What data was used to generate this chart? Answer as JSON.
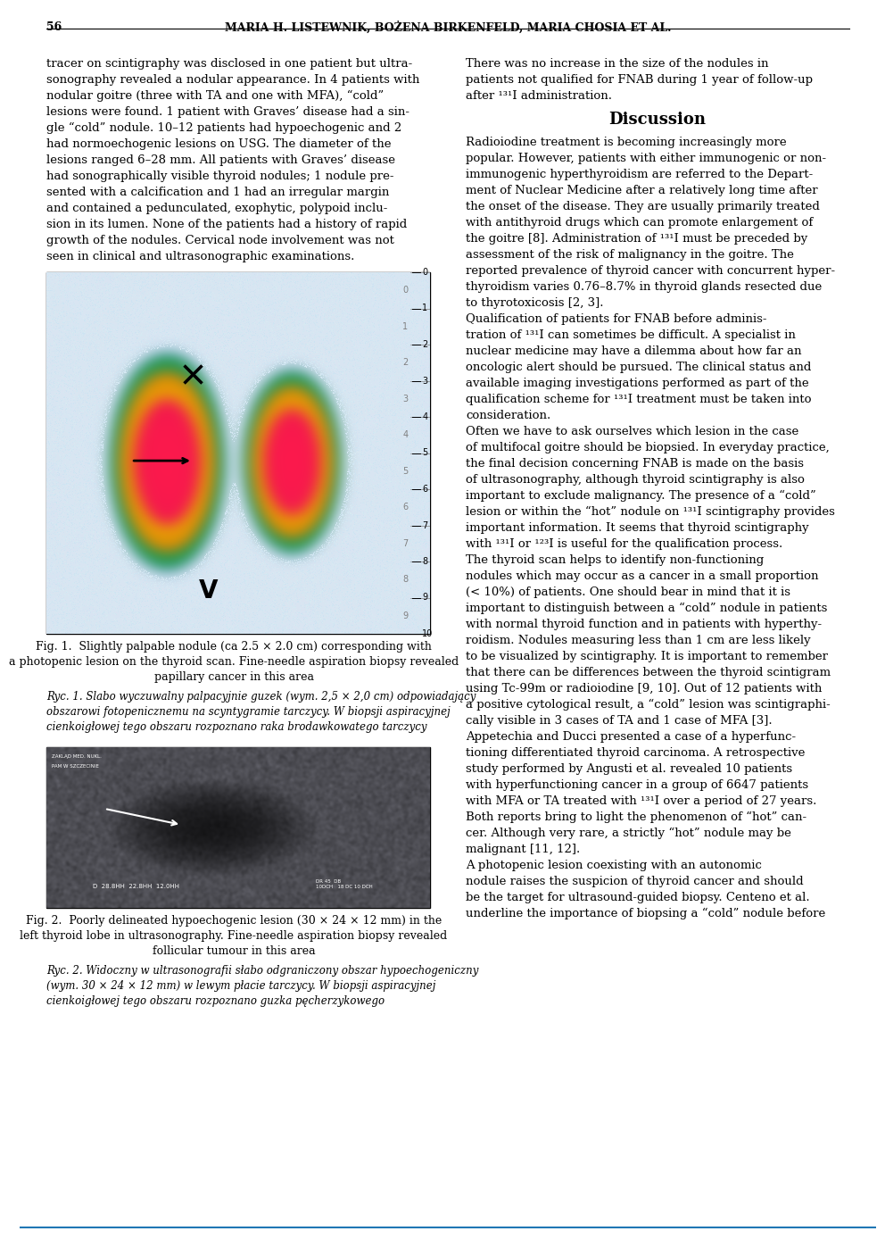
{
  "page_number": "56",
  "header_authors": "MARIA H. LISTEWNIK, BOŻENA BIRKENFELD, MARIA CHOSIA ET AL.",
  "background_color": "#ffffff",
  "left_col_text": [
    "tracer on scintigraphy was disclosed in one patient but ultra-",
    "sonography revealed a nodular appearance. In 4 patients with",
    "nodular goitre (three with TA and one with MFA), “cold”",
    "lesions were found. 1 patient with Graves’ disease had a sin-",
    "gle “cold” nodule. 10–12 patients had hypoechogenic and 2",
    "had normoechogenic lesions on USG. The diameter of the",
    "lesions ranged 6–28 mm. All patients with Graves’ disease",
    "had sonographically visible thyroid nodules; 1 nodule pre-",
    "sented with a calcification and 1 had an irregular margin",
    "and contained a pedunculated, exophytic, polypoid inclu-",
    "sion in its lumen. None of the patients had a history of rapid",
    "growth of the nodules. Cervical node involvement was not",
    "seen in clinical and ultrasonographic examinations."
  ],
  "right_col_text_top": [
    "There was no increase in the size of the nodules in",
    "patients not qualified for FNAB during 1 year of follow-up",
    "after ¹³¹I administration."
  ],
  "discussion_title": "Discussion",
  "right_col_discussion": [
    "Radioiodine treatment is becoming increasingly more",
    "popular. However, patients with either immunogenic or non-",
    "immunogenic hyperthyroidism are referred to the Depart-",
    "ment of Nuclear Medicine after a relatively long time after",
    "the onset of the disease. They are usually primarily treated",
    "with antithyroid drugs which can promote enlargement of",
    "the goitre [8]. Administration of ¹³¹I must be preceded by",
    "assessment of the risk of malignancy in the goitre. The",
    "reported prevalence of thyroid cancer with concurrent hyper-",
    "thyroidism varies 0.76–8.7% in thyroid glands resected due",
    "to thyrotoxicosis [2, 3].",
    "Qualification of patients for FNAB before adminis-",
    "tration of ¹³¹I can sometimes be difficult. A specialist in",
    "nuclear medicine may have a dilemma about how far an",
    "oncologic alert should be pursued. The clinical status and",
    "available imaging investigations performed as part of the",
    "qualification scheme for ¹³¹I treatment must be taken into",
    "consideration.",
    "Often we have to ask ourselves which lesion in the case",
    "of multifocal goitre should be biopsied. In everyday practice,",
    "the final decision concerning FNAB is made on the basis",
    "of ultrasonography, although thyroid scintigraphy is also",
    "important to exclude malignancy. The presence of a “cold”",
    "lesion or within the “hot” nodule on ¹³¹I scintigraphy provides",
    "important information. It seems that thyroid scintigraphy",
    "with ¹³¹I or ¹²³I is useful for the qualification process.",
    "The thyroid scan helps to identify non-functioning",
    "nodules which may occur as a cancer in a small proportion",
    "(< 10%) of patients. One should bear in mind that it is",
    "important to distinguish between a “cold” nodule in patients",
    "with normal thyroid function and in patients with hyperthy-",
    "roidism. Nodules measuring less than 1 cm are less likely",
    "to be visualized by scintigraphy. It is important to remember",
    "that there can be differences between the thyroid scintigram",
    "using Tc-99m or radioiodine [9, 10]. Out of 12 patients with",
    "a positive cytological result, a “cold” lesion was scintigraphi-",
    "cally visible in 3 cases of TA and 1 case of MFA [3].",
    "Appetechia and Ducci presented a case of a hyperfunc-",
    "tioning differentiated thyroid carcinoma. A retrospective",
    "study performed by Angusti et al. revealed 10 patients",
    "with hyperfunctioning cancer in a group of 6647 patients",
    "with MFA or TA treated with ¹³¹I over a period of 27 years.",
    "Both reports bring to light the phenomenon of “hot” can-",
    "cer. Although very rare, a strictly “hot” nodule may be",
    "malignant [11, 12].",
    "A photopenic lesion coexisting with an autonomic",
    "nodule raises the suspicion of thyroid cancer and should",
    "be the target for ultrasound-guided biopsy. Centeno et al.",
    "underline the importance of biopsing a “cold” nodule before"
  ],
  "fig1_caption_en": "Fig. 1.  Slightly palpable nodule (ca 2.5 × 2.0 cm) corresponding with\na photopenic lesion on the thyroid scan. Fine-needle aspiration biopsy revealed\npapillary cancer in this area",
  "fig1_caption_pl": "Ryc. 1. Slabo wyczuwalny palpacyjnie guzek (wym. 2,5 × 2,0 cm) odpowiadający\nobszarowi fotopenicznemu na scyntygramie tarczycy. W biopsji aspiracyjnej\ncienkoigłowej tego obszaru rozpoznano raka brodawkowatego tarczycy",
  "fig2_caption_en": "Fig. 2.  Poorly delineated hypoechogenic lesion (30 × 24 × 12 mm) in the\nleft thyroid lobe in ultrasonography. Fine-needle aspiration biopsy revealed\nfollicular tumour in this area",
  "fig2_caption_pl": "Ryc. 2. Widoczny w ultrasonografii słabo odgraniczony obszar hypoechogeniczny\n(wym. 30 × 24 × 12 mm) w lewym płacie tarczycy. W biopsji aspiracyjnej\ncienkoigłowej tego obszaru rozpoznano guzka pęcherzykowego"
}
